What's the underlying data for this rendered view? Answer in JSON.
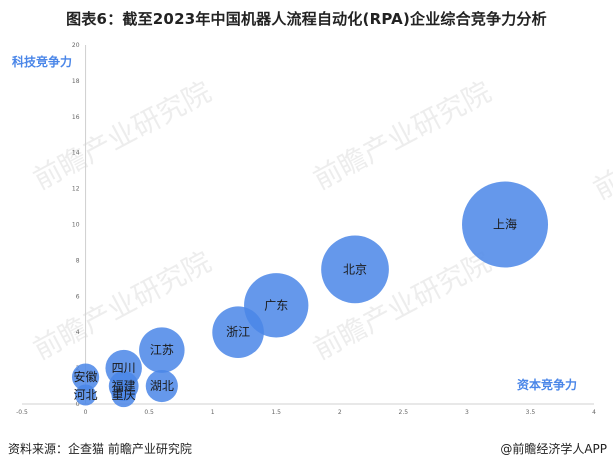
{
  "title": "图表6：截至2023年中国机器人流程自动化(RPA)企业综合竞争力分析",
  "source": "资料来源：企查猫 前瞻产业研究院",
  "brand": "@前瞻经济学人APP",
  "watermark": "前瞻产业研究院",
  "chart_data": {
    "type": "scatter",
    "title": "",
    "xlabel": "资本竞争力",
    "ylabel": "科技竞争力",
    "xlim": [
      -0.5,
      4
    ],
    "ylim": [
      0,
      20
    ],
    "x_ticks": [
      "-0.5",
      "0",
      "0.5",
      "1",
      "1.5",
      "2",
      "2.5",
      "3",
      "3.5",
      "4"
    ],
    "y_ticks": [
      "0",
      "2",
      "4",
      "6",
      "8",
      "10",
      "12",
      "14",
      "16",
      "18",
      "20"
    ],
    "grid": false,
    "points": [
      {
        "label": "上海",
        "x": 3.3,
        "y": 10.0,
        "size": 100
      },
      {
        "label": "北京",
        "x": 2.12,
        "y": 7.5,
        "size": 62
      },
      {
        "label": "广东",
        "x": 1.5,
        "y": 5.5,
        "size": 56
      },
      {
        "label": "浙江",
        "x": 1.2,
        "y": 4.0,
        "size": 36
      },
      {
        "label": "江苏",
        "x": 0.6,
        "y": 3.0,
        "size": 28
      },
      {
        "label": "四川",
        "x": 0.3,
        "y": 2.0,
        "size": 18
      },
      {
        "label": "湖北",
        "x": 0.6,
        "y": 1.0,
        "size": 14
      },
      {
        "label": "福建",
        "x": 0.3,
        "y": 1.0,
        "size": 12
      },
      {
        "label": "安徽",
        "x": 0.0,
        "y": 1.5,
        "size": 10
      },
      {
        "label": "重庆",
        "x": 0.3,
        "y": 0.5,
        "size": 8
      },
      {
        "label": "河北",
        "x": 0.0,
        "y": 0.5,
        "size": 6
      }
    ]
  }
}
